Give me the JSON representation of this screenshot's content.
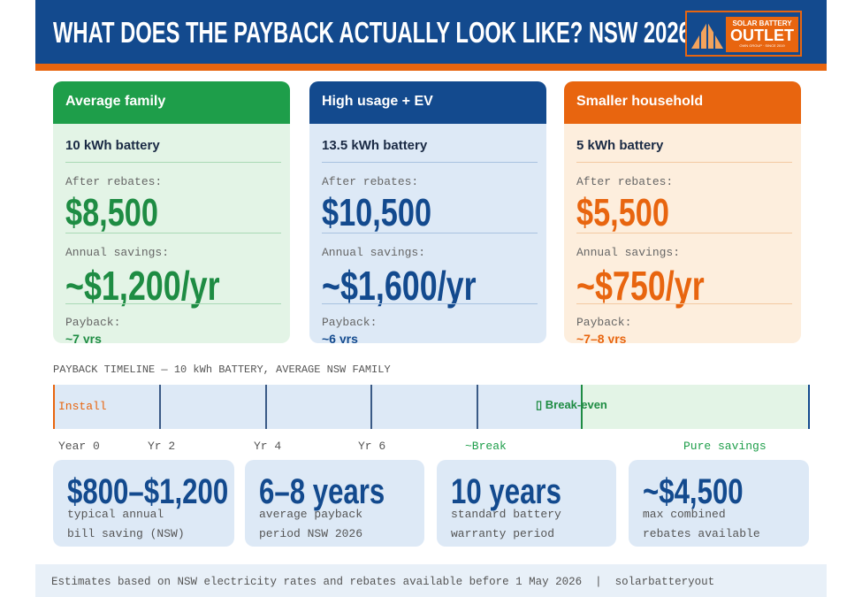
{
  "header": {
    "title": "WHAT DOES THE PAYBACK ACTUALLY LOOK LIKE? NSW 2026",
    "logo": {
      "line1": "SOLAR BATTERY",
      "line2": "OUTLET",
      "tagline": "OWN GROUP · SINCE 2019"
    }
  },
  "cards": [
    {
      "title": "Average family",
      "battery": "10 kWh battery",
      "after_label": "After rebates:",
      "after_value": "$8,500",
      "savings_label": "Annual savings:",
      "savings_value": "~$1,200/yr",
      "payback_label": "Payback:",
      "payback_value": "~7 yrs"
    },
    {
      "title": "High usage + EV",
      "battery": "13.5 kWh battery",
      "after_label": "After rebates:",
      "after_value": "$10,500",
      "savings_label": "Annual savings:",
      "savings_value": "~$1,600/yr",
      "payback_label": "Payback:",
      "payback_value": "~6 yrs"
    },
    {
      "title": "Smaller household",
      "battery": "5 kWh battery",
      "after_label": "After rebates:",
      "after_value": "$5,500",
      "savings_label": "Annual savings:",
      "savings_value": "~$750/yr",
      "payback_label": "Payback:",
      "payback_value": "~7–8 yrs"
    }
  ],
  "timeline": {
    "title": "PAYBACK TIMELINE — 10 kWh BATTERY, AVERAGE NSW FAMILY",
    "install": "Install",
    "break_even": "▯ Break-even",
    "labels": [
      "Year 0",
      "Yr 2",
      "Yr 4",
      "Yr 6",
      "~Break",
      "Pure savings"
    ]
  },
  "stats": [
    {
      "value": "$800–$1,200",
      "line1": "typical annual",
      "line2": "bill saving (NSW)"
    },
    {
      "value": "6–8 years",
      "line1": "average payback",
      "line2": "period NSW 2026"
    },
    {
      "value": "10 years",
      "line1": "standard battery",
      "line2": "warranty period"
    },
    {
      "value": "~$4,500",
      "line1": "max combined",
      "line2": "rebates available"
    }
  ],
  "footer": "Estimates based on NSW electricity rates and rebates available before 1 May 2026  |  solarbatteryout"
}
